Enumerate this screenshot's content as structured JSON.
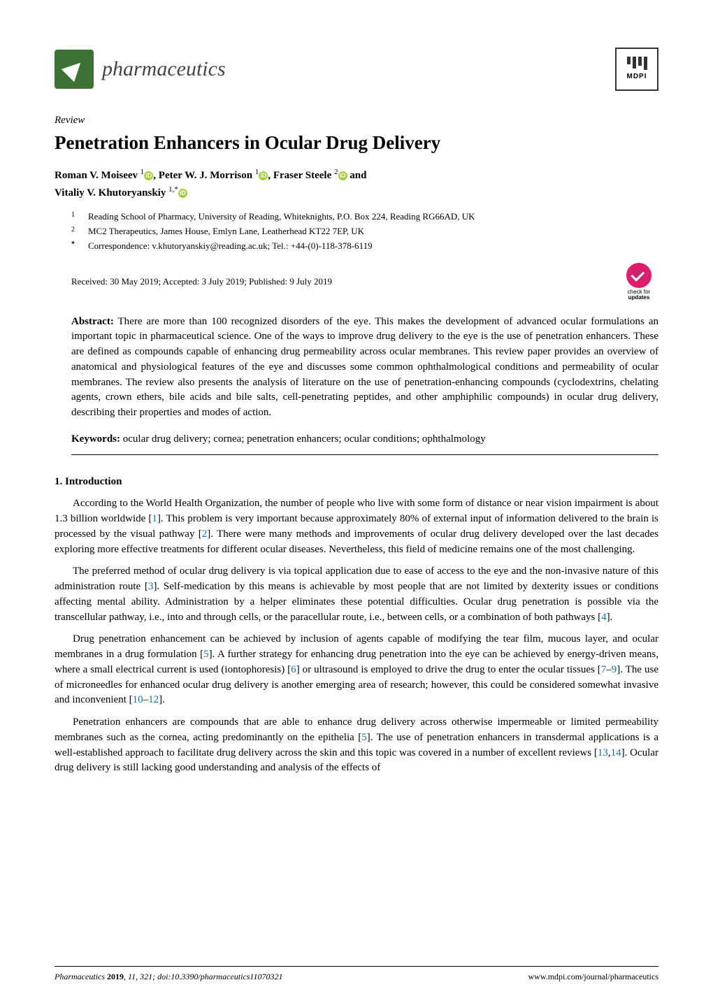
{
  "journal": {
    "name": "pharmaceutics",
    "publisher": "MDPI"
  },
  "article": {
    "type": "Review",
    "title": "Penetration Enhancers in Ocular Drug Delivery"
  },
  "authors": {
    "line1": "Roman V. Moiseev ",
    "sup1": "1",
    "line2": ", Peter W. J. Morrison ",
    "sup2": "1",
    "line3": ", Fraser Steele ",
    "sup3": "2",
    "line4": " and",
    "line5": "Vitaliy V. Khutoryanskiy ",
    "sup5": "1,*"
  },
  "affiliations": [
    {
      "num": "1",
      "text": "Reading School of Pharmacy, University of Reading, Whiteknights, P.O. Box 224, Reading RG66AD, UK"
    },
    {
      "num": "2",
      "text": "MC2 Therapeutics, James House, Emlyn Lane, Leatherhead KT22 7EP, UK"
    },
    {
      "num": "*",
      "text": "Correspondence: v.khutoryanskiy@reading.ac.uk; Tel.: +44-(0)-118-378-6119"
    }
  ],
  "dates": "Received: 30 May 2019; Accepted: 3 July 2019; Published: 9 July 2019",
  "check_updates": {
    "line1": "check for",
    "line2": "updates"
  },
  "abstract": {
    "label": "Abstract:",
    "text": " There are more than 100 recognized disorders of the eye. This makes the development of advanced ocular formulations an important topic in pharmaceutical science. One of the ways to improve drug delivery to the eye is the use of penetration enhancers. These are defined as compounds capable of enhancing drug permeability across ocular membranes. This review paper provides an overview of anatomical and physiological features of the eye and discusses some common ophthalmological conditions and permeability of ocular membranes. The review also presents the analysis of literature on the use of penetration-enhancing compounds (cyclodextrins, chelating agents, crown ethers, bile acids and bile salts, cell-penetrating peptides, and other amphiphilic compounds) in ocular drug delivery, describing their properties and modes of action."
  },
  "keywords": {
    "label": "Keywords:",
    "text": " ocular drug delivery; cornea; penetration enhancers; ocular conditions; ophthalmology"
  },
  "sections": {
    "intro_heading": "1. Introduction",
    "paragraphs": [
      {
        "parts": [
          {
            "t": "According to the World Health Organization, the number of people who live with some form of distance or near vision impairment is about 1.3 billion worldwide ["
          },
          {
            "t": "1",
            "ref": true
          },
          {
            "t": "]. This problem is very important because approximately 80% of external input of information delivered to the brain is processed by the visual pathway ["
          },
          {
            "t": "2",
            "ref": true
          },
          {
            "t": "]. There were many methods and improvements of ocular drug delivery developed over the last decades exploring more effective treatments for different ocular diseases. Nevertheless, this field of medicine remains one of the most challenging."
          }
        ]
      },
      {
        "parts": [
          {
            "t": "The preferred method of ocular drug delivery is via topical application due to ease of access to the eye and the non-invasive nature of this administration route ["
          },
          {
            "t": "3",
            "ref": true
          },
          {
            "t": "]. Self-medication by this means is achievable by most people that are not limited by dexterity issues or conditions affecting mental ability. Administration by a helper eliminates these potential difficulties. Ocular drug penetration is possible via the transcellular pathway, i.e., into and through cells, or the paracellular route, i.e., between cells, or a combination of both pathways ["
          },
          {
            "t": "4",
            "ref": true
          },
          {
            "t": "]."
          }
        ]
      },
      {
        "parts": [
          {
            "t": "Drug penetration enhancement can be achieved by inclusion of agents capable of modifying the tear film, mucous layer, and ocular membranes in a drug formulation ["
          },
          {
            "t": "5",
            "ref": true
          },
          {
            "t": "]. A further strategy for enhancing drug penetration into the eye can be achieved by energy-driven means, where a small electrical current is used (iontophoresis) ["
          },
          {
            "t": "6",
            "ref": true
          },
          {
            "t": "] or ultrasound is employed to drive the drug to enter the ocular tissues ["
          },
          {
            "t": "7",
            "ref": true
          },
          {
            "t": "–"
          },
          {
            "t": "9",
            "ref": true
          },
          {
            "t": "]. The use of microneedles for enhanced ocular drug delivery is another emerging area of research; however, this could be considered somewhat invasive and inconvenient ["
          },
          {
            "t": "10",
            "ref": true
          },
          {
            "t": "–"
          },
          {
            "t": "12",
            "ref": true
          },
          {
            "t": "]."
          }
        ]
      },
      {
        "parts": [
          {
            "t": "Penetration enhancers are compounds that are able to enhance drug delivery across otherwise impermeable or limited permeability membranes such as the cornea, acting predominantly on the epithelia ["
          },
          {
            "t": "5",
            "ref": true
          },
          {
            "t": "]. The use of penetration enhancers in transdermal applications is a well-established approach to facilitate drug delivery across the skin and this topic was covered in a number of excellent reviews ["
          },
          {
            "t": "13",
            "ref": true
          },
          {
            "t": ","
          },
          {
            "t": "14",
            "ref": true
          },
          {
            "t": "]. Ocular drug delivery is still lacking good understanding and analysis of the effects of"
          }
        ]
      }
    ]
  },
  "footer": {
    "left_italic": "Pharmaceutics ",
    "left_bold": "2019",
    "left_rest": ", 11, 321; doi:10.3390/pharmaceutics11070321",
    "right": "www.mdpi.com/journal/pharmaceutics"
  },
  "colors": {
    "ref_link": "#0b72ba",
    "orcid_bg": "#a6ce39",
    "logo_bg": "#3e7234"
  }
}
